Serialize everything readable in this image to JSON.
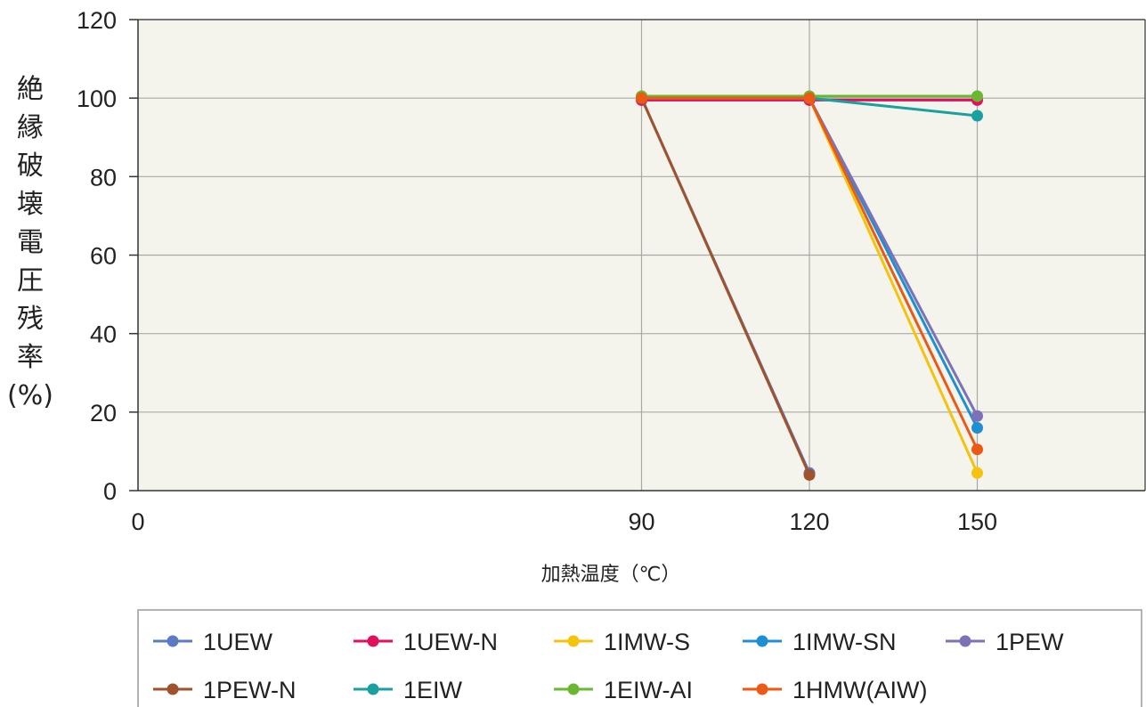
{
  "chart_data": {
    "type": "line",
    "title": "",
    "xlabel": "加熱温度（℃）",
    "ylabel": "絶縁破壊電圧残率(%)",
    "x": [
      90,
      120,
      150
    ],
    "x_ticks": [
      "0",
      "90",
      "120",
      "150"
    ],
    "y_ticks": [
      "0",
      "20",
      "40",
      "60",
      "80",
      "100",
      "120"
    ],
    "xlim": [
      0,
      180
    ],
    "ylim": [
      0,
      120
    ],
    "grid": true,
    "legend_position": "bottom",
    "series": [
      {
        "name": "1UEW",
        "color": "#5b7bc4",
        "values": [
          100,
          4.5,
          null
        ]
      },
      {
        "name": "1UEW-N",
        "color": "#e0105f",
        "values": [
          99.5,
          99.5,
          99.5
        ]
      },
      {
        "name": "1IMW-S",
        "color": "#f5c20c",
        "values": [
          100,
          100,
          4.5
        ]
      },
      {
        "name": "1IMW-SN",
        "color": "#1e8fd0",
        "values": [
          100,
          100,
          16
        ]
      },
      {
        "name": "1PEW",
        "color": "#7b72b8",
        "values": [
          100,
          100,
          19
        ]
      },
      {
        "name": "1PEW-N",
        "color": "#a0522d",
        "values": [
          100,
          4,
          null
        ]
      },
      {
        "name": "1EIW",
        "color": "#1aa0a0",
        "values": [
          100,
          100,
          95.5
        ]
      },
      {
        "name": "1EIW-AI",
        "color": "#6ab832",
        "values": [
          100.5,
          100.5,
          100.5
        ]
      },
      {
        "name": "1HMW(AIW)",
        "color": "#ea5a14",
        "values": [
          100,
          100,
          10.5
        ]
      }
    ]
  },
  "plot_bg": "#f4f4ec",
  "grid_color": "#a8a8a8",
  "legend_rows": [
    [
      "1UEW",
      "1UEW-N",
      "1IMW-S",
      "1IMW-SN",
      "1PEW"
    ],
    [
      "1PEW-N",
      "1EIW",
      "1EIW-AI",
      "1HMW(AIW)"
    ]
  ]
}
